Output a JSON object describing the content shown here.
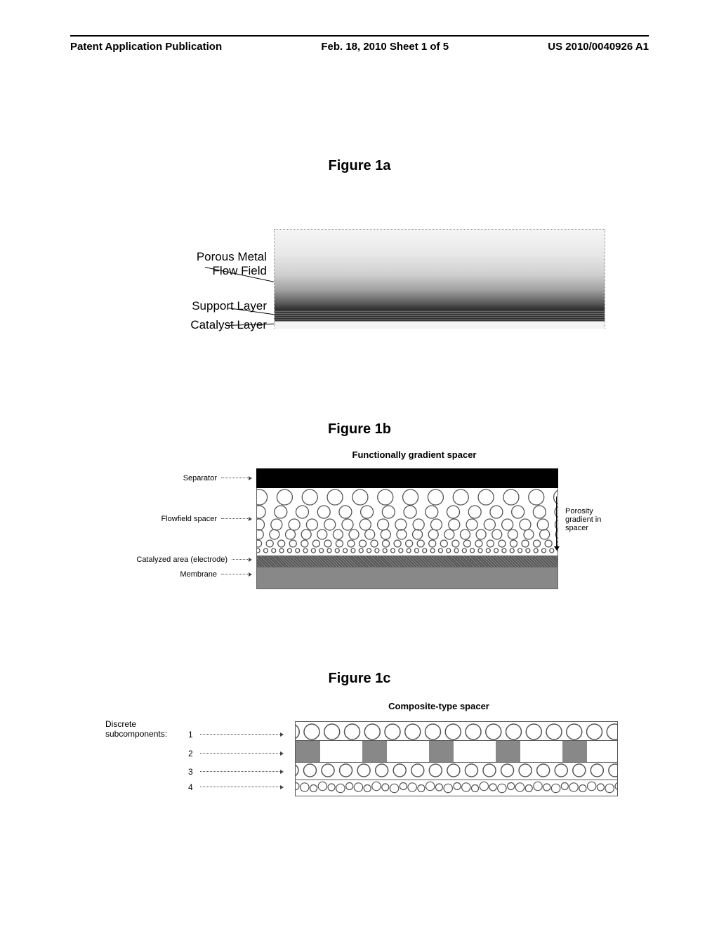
{
  "header": {
    "left": "Patent Application Publication",
    "center": "Feb. 18, 2010  Sheet 1 of 5",
    "right": "US 2010/0040926 A1"
  },
  "fig1a": {
    "title": "Figure 1a",
    "labels": {
      "porous_metal": "Porous Metal",
      "flow_field": "Flow Field",
      "support_layer": "Support Layer",
      "catalyst_layer": "Catalyst Layer"
    }
  },
  "fig1b": {
    "title": "Figure 1b",
    "subtitle": "Functionally gradient spacer",
    "labels": {
      "separator": "Separator",
      "flowfield": "Flowfield spacer",
      "catalyzed": "Catalyzed area (electrode)",
      "membrane": "Membrane",
      "porosity": "Porosity gradient in spacer"
    },
    "circle_rows": [
      {
        "count": 12,
        "r": 11,
        "y": 13
      },
      {
        "count": 14,
        "r": 9,
        "y": 34
      },
      {
        "count": 17,
        "r": 8,
        "y": 52
      },
      {
        "count": 19,
        "r": 7,
        "y": 66
      },
      {
        "count": 26,
        "r": 5,
        "y": 79
      },
      {
        "count": 38,
        "r": 3,
        "y": 89
      }
    ]
  },
  "fig1c": {
    "title": "Figure 1c",
    "subtitle": "Composite-type spacer",
    "discrete_label": "Discrete",
    "subcomponents_label": "subcomponents:",
    "rows": [
      "1",
      "2",
      "3",
      "4"
    ],
    "row1_circles": {
      "count": 16,
      "r": 11,
      "y": 14
    },
    "row2_blocks": [
      35,
      60,
      35,
      60,
      35,
      60,
      35,
      60,
      35,
      60,
      35,
      60,
      35
    ],
    "row3_circles": {
      "count": 18,
      "r": 9,
      "y": 11
    },
    "row4_circles": {
      "count": 36,
      "r": 5,
      "y": 10
    }
  },
  "colors": {
    "stroke": "#555",
    "grey_fill": "#888",
    "black": "#000"
  }
}
